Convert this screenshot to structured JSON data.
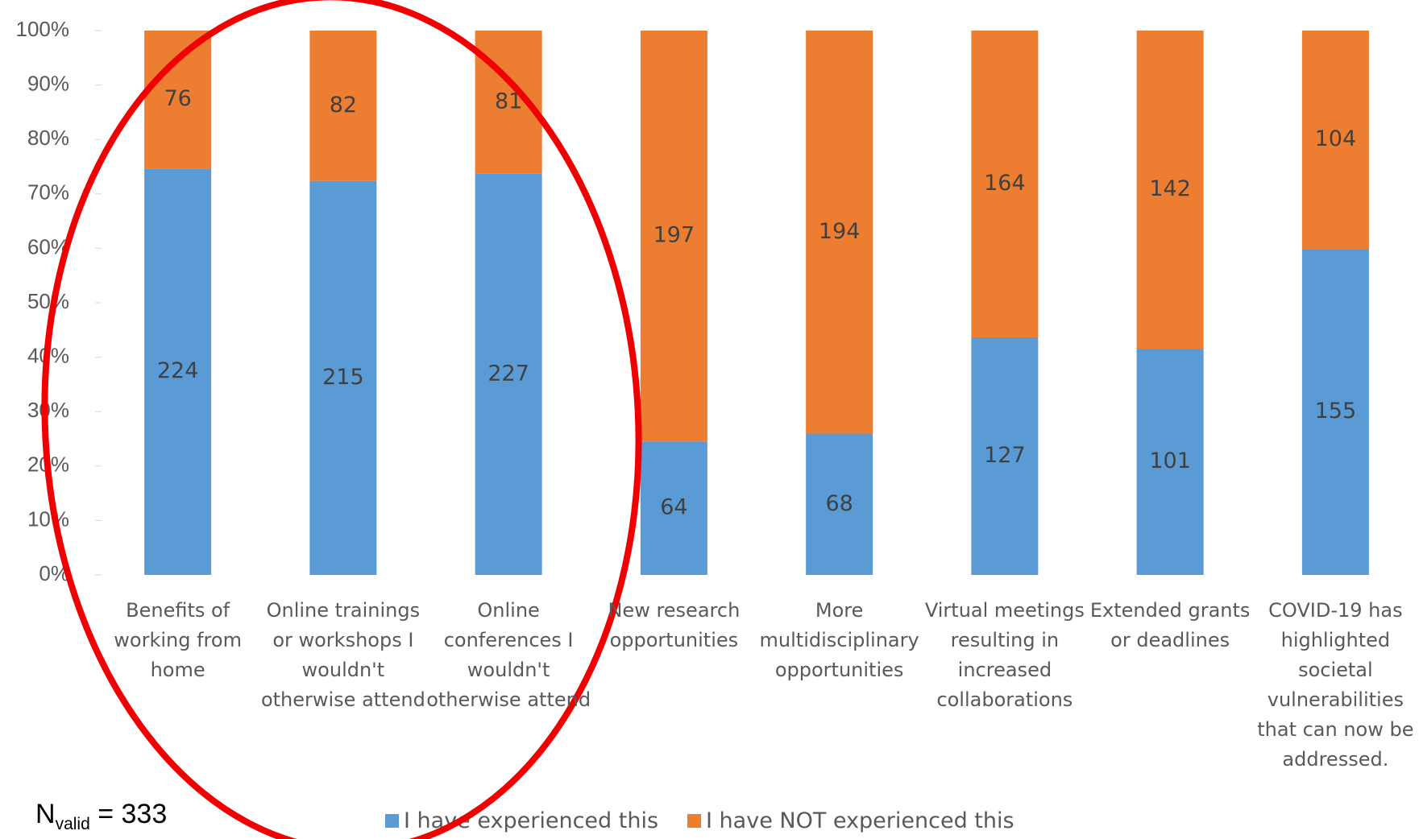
{
  "chart_data": {
    "type": "bar",
    "stacking": "percent",
    "categories": [
      "Benefits of working from home",
      "Online trainings or workshops I wouldn't otherwise attend",
      "Online conferences I wouldn't otherwise attend",
      "New research opportunities",
      "More multidisciplinary opportunities",
      "Virtual meetings resulting in increased collaborations",
      "Extended grants or deadlines",
      "COVID-19 has highlighted societal vulnerabilities that can now be addressed."
    ],
    "series": [
      {
        "name": "I have experienced this",
        "color": "#5b9bd5",
        "values": [
          224,
          215,
          227,
          64,
          68,
          127,
          101,
          155
        ]
      },
      {
        "name": "I have NOT experienced this",
        "color": "#ed7d31",
        "values": [
          76,
          82,
          81,
          197,
          194,
          164,
          142,
          104
        ]
      }
    ],
    "ylim": [
      0,
      100
    ],
    "yticks": [
      {
        "value": 0,
        "label": "0%"
      },
      {
        "value": 10,
        "label": "10%"
      },
      {
        "value": 20,
        "label": "20%"
      },
      {
        "value": 30,
        "label": "30%"
      },
      {
        "value": 40,
        "label": "40%"
      },
      {
        "value": 50,
        "label": "50%"
      },
      {
        "value": 60,
        "label": "60%"
      },
      {
        "value": 70,
        "label": "70%"
      },
      {
        "value": 80,
        "label": "80%"
      },
      {
        "value": 90,
        "label": "90%"
      },
      {
        "value": 100,
        "label": "100%"
      }
    ],
    "annotation": {
      "base": "N",
      "subscript": "valid",
      "rest": " = 333"
    }
  }
}
